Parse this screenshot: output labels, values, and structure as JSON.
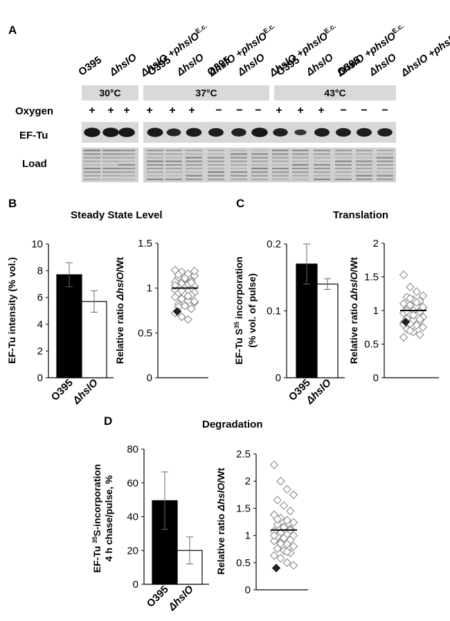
{
  "panel_a": {
    "letter": "A",
    "lane_labels": [
      [
        "O395",
        "ΔhslO",
        "ΔhslO +phslO",
        "E.c."
      ],
      [
        "O395",
        "ΔhslO",
        "ΔhslO +phslO",
        "E.c."
      ],
      [
        "O395",
        "ΔhslO",
        "ΔhslO +phslO",
        "E.c."
      ],
      [
        "O395",
        "ΔhslO",
        "ΔhslO +phslO",
        "E.c."
      ],
      [
        "O395",
        "ΔhslO",
        "ΔhslO +phslO",
        "E.c."
      ]
    ],
    "temps": [
      "30°C",
      "37°C",
      "43°C"
    ],
    "oxygen_label": "Oxygen",
    "oxygen": [
      "+",
      "+",
      "+",
      "+",
      "+",
      "+",
      "−",
      "−",
      "−",
      "+",
      "+",
      "+",
      "−",
      "−",
      "−"
    ],
    "eftu_label": "EF-Tu",
    "load_label": "Load",
    "eftu_band_intensity": [
      0.95,
      0.95,
      0.95,
      0.9,
      0.65,
      0.85,
      0.8,
      0.75,
      0.95,
      0.75,
      0.3,
      0.8,
      0.8,
      0.8,
      0.75
    ]
  },
  "panel_b": {
    "letter": "B",
    "title": "Steady State Level"
  },
  "panel_c": {
    "letter": "C",
    "title": "Translation"
  },
  "panel_d": {
    "letter": "D",
    "title": "Degradation"
  },
  "chart_data": [
    {
      "type": "bar",
      "panel": "B",
      "categories": [
        "O395",
        "ΔhslO"
      ],
      "values": [
        7.7,
        5.7
      ],
      "errors": [
        0.9,
        0.8
      ],
      "ylabel": "EF-Tu intensity (% vol.)",
      "ylim": [
        0,
        10
      ],
      "yticks": [
        0,
        2,
        4,
        6,
        8,
        10
      ],
      "colors": [
        "#000000",
        "#ffffff"
      ]
    },
    {
      "type": "scatter",
      "panel": "B",
      "ylabel": "Relative ratio ΔhslO/Wt",
      "ylim": [
        0,
        1.5
      ],
      "yticks": [
        "0",
        "0.5",
        "1",
        "1.5"
      ],
      "mean": 1.0,
      "highlight": 0.74,
      "points": [
        1.2,
        1.18,
        1.16,
        1.14,
        1.12,
        1.1,
        1.08,
        1.07,
        1.05,
        1.04,
        1.02,
        1.01,
        1.0,
        0.99,
        0.98,
        0.97,
        0.96,
        0.95,
        0.94,
        0.93,
        0.92,
        0.9,
        0.88,
        0.86,
        0.84,
        0.82,
        0.8,
        0.77,
        0.72,
        0.68,
        0.65,
        1.19,
        1.15,
        1.11,
        1.06,
        1.03,
        0.97,
        0.91,
        0.85,
        0.79
      ]
    },
    {
      "type": "bar",
      "panel": "C",
      "categories": [
        "O395",
        "ΔhslO"
      ],
      "values": [
        0.17,
        0.14
      ],
      "errors": [
        0.03,
        0.008
      ],
      "ylabel": "EF-Tu S35 incorporation (% vol. of pulse)",
      "ylim": [
        0,
        0.2
      ],
      "yticks": [
        "0",
        "0.1",
        "0.2"
      ],
      "colors": [
        "#000000",
        "#ffffff"
      ]
    },
    {
      "type": "scatter",
      "panel": "C",
      "ylabel": "Relative ratio ΔhslO/Wt",
      "ylim": [
        0,
        2
      ],
      "yticks": [
        "0",
        "0.5",
        "1",
        "1.5",
        "2"
      ],
      "mean": 1.0,
      "highlight": 0.83,
      "points": [
        1.53,
        1.35,
        1.28,
        1.22,
        1.2,
        1.16,
        1.14,
        1.1,
        1.08,
        1.06,
        1.04,
        1.02,
        1.0,
        0.98,
        0.96,
        0.94,
        0.92,
        0.9,
        0.88,
        0.86,
        0.84,
        0.82,
        0.8,
        0.78,
        0.75,
        0.72,
        0.68,
        0.64,
        0.6,
        1.18,
        1.12,
        1.05,
        0.99,
        0.93,
        0.87,
        0.79,
        0.7
      ]
    },
    {
      "type": "bar",
      "panel": "D",
      "categories": [
        "O395",
        "ΔhslO"
      ],
      "values": [
        49.5,
        20.0
      ],
      "errors": [
        17,
        8
      ],
      "ylabel": "EF-Tu 35S-incorporation 4 h chase/pulse, %",
      "ylim": [
        0,
        80
      ],
      "yticks": [
        0,
        20,
        40,
        60,
        80
      ],
      "colors": [
        "#000000",
        "#ffffff"
      ]
    },
    {
      "type": "scatter",
      "panel": "D",
      "ylabel": "Relative ratio ΔhslO/Wt",
      "ylim": [
        0,
        2.5
      ],
      "yticks": [
        "0",
        "0.5",
        "1",
        "1.5",
        "2",
        "2.5"
      ],
      "mean": 1.1,
      "highlight": 0.4,
      "points": [
        2.3,
        2.0,
        1.85,
        1.75,
        1.65,
        1.55,
        1.45,
        1.38,
        1.32,
        1.28,
        1.24,
        1.2,
        1.16,
        1.12,
        1.08,
        1.05,
        1.02,
        1.0,
        0.98,
        0.95,
        0.92,
        0.9,
        0.87,
        0.84,
        0.8,
        0.76,
        0.72,
        0.68,
        0.63,
        0.58,
        0.5,
        0.45,
        1.3,
        1.15,
        1.1,
        1.0,
        0.85,
        0.7
      ]
    }
  ]
}
